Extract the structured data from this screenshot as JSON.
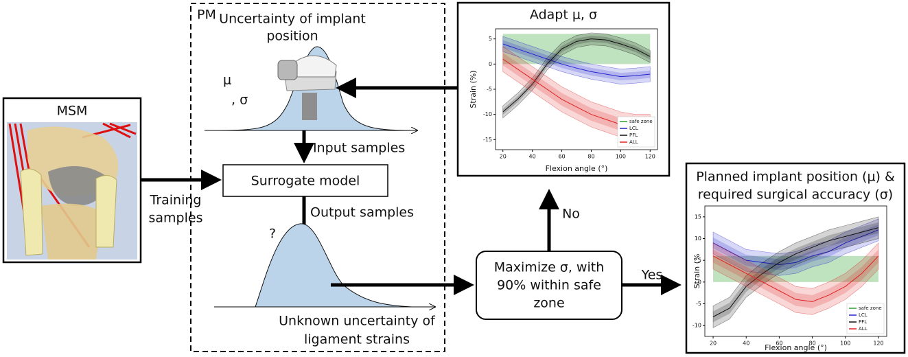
{
  "diagram": {
    "msm_title": "MSM",
    "training": [
      "Training",
      "samples"
    ],
    "pm": "PM",
    "uncertainty_implant": [
      "Uncertainty of implant",
      "position"
    ],
    "mu": "μ",
    "sigma": ", σ",
    "input_samples": "Input samples",
    "surrogate": "Surrogate model",
    "output_samples": "Output samples",
    "question": "?",
    "unknown": [
      "Unknown uncertainty of",
      "ligament strains"
    ],
    "decision": [
      "Maximize σ, with",
      "90% within safe",
      "zone"
    ],
    "yes": "Yes",
    "no": "No"
  },
  "chart_data": [
    {
      "type": "line",
      "title": [
        "Adapt μ, σ"
      ],
      "x": [
        20,
        30,
        40,
        50,
        60,
        70,
        80,
        90,
        100,
        110,
        120
      ],
      "xlim": [
        15,
        125
      ],
      "xticks": [
        20,
        40,
        60,
        80,
        100,
        120
      ],
      "ylim": [
        -17,
        7
      ],
      "yticks": [
        -15,
        -10,
        -5,
        0,
        5
      ],
      "xlabel": "Flexion angle (°)",
      "ylabel": "Strain (%)",
      "safe_zone": {
        "name": "safe zone",
        "color": "#2ca02c",
        "range": [
          0,
          6
        ]
      },
      "series": [
        {
          "name": "LCL",
          "color": "#2222cc",
          "sd": 1.5,
          "values": [
            4,
            3,
            2,
            1,
            0,
            -0.8,
            -1.5,
            -2,
            -2.5,
            -2.3,
            -2
          ]
        },
        {
          "name": "PFL",
          "color": "#111111",
          "sd": 1.2,
          "values": [
            -9.5,
            -7,
            -4,
            0,
            3,
            4.5,
            5,
            4.8,
            4,
            3,
            1.5
          ]
        },
        {
          "name": "ALL",
          "color": "#dd2222",
          "sd": 2.5,
          "values": [
            1,
            -1,
            -3,
            -5,
            -7,
            -8.5,
            -10,
            -11,
            -12,
            -12.5,
            -12.5
          ]
        }
      ],
      "legend": "lower right"
    },
    {
      "type": "line",
      "title": [
        "Planned implant position (μ) &",
        "required surgical accuracy (σ)"
      ],
      "x": [
        20,
        30,
        40,
        50,
        60,
        70,
        80,
        90,
        100,
        110,
        120
      ],
      "xlim": [
        15,
        125
      ],
      "xticks": [
        20,
        40,
        60,
        80,
        100,
        120
      ],
      "ylim": [
        -12.5,
        17.5
      ],
      "yticks": [
        -10,
        -5,
        0,
        5,
        10,
        15
      ],
      "xlabel": "Flexion angle (°)",
      "ylabel": "Strain (%",
      "safe_zone": {
        "name": "safe zone",
        "color": "#2ca02c",
        "range": [
          0,
          6
        ]
      },
      "series": [
        {
          "name": "LCL",
          "color": "#2222cc",
          "sd": 2.5,
          "values": [
            9,
            7,
            5,
            4.5,
            4,
            4.5,
            6,
            7,
            9,
            10.5,
            12
          ]
        },
        {
          "name": "PFL",
          "color": "#111111",
          "sd": 2.5,
          "values": [
            -8,
            -6,
            -1,
            2,
            4.5,
            6.5,
            8,
            9.5,
            10.5,
            11.5,
            12.5
          ]
        },
        {
          "name": "ALL",
          "color": "#dd2222",
          "sd": 3,
          "values": [
            6,
            4,
            2,
            0,
            -2,
            -4,
            -4.5,
            -3,
            -1,
            2,
            6
          ]
        }
      ],
      "legend": "lower right"
    }
  ]
}
